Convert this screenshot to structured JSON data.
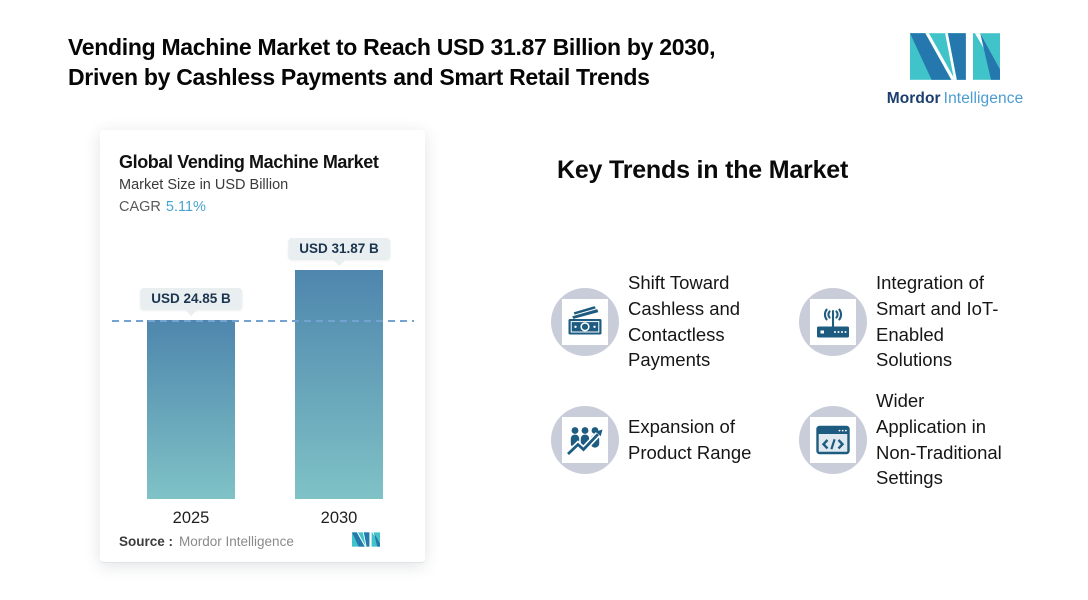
{
  "header": {
    "title": "Vending Machine Market to Reach USD 31.87 Billion by 2030,\nDriven by Cashless Payments and Smart Retail Trends"
  },
  "brand": {
    "name_bold": "Mordor",
    "name_light": "Intelligence",
    "teal": "#41c4c9",
    "blue": "#2478ad",
    "navy_text": "#1b3e6f",
    "light_text": "#4a9cd3"
  },
  "chart_card": {
    "title": "Global Vending Machine Market",
    "subtitle": "Market Size in USD Billion",
    "cagr_label": "CAGR",
    "cagr_value": "5.11%",
    "source_label": "Source :",
    "source_value": "Mordor Intelligence"
  },
  "chart_data": {
    "type": "bar",
    "title": "Global Vending Machine Market",
    "ylabel": "Market Size in USD Billion",
    "cagr_percent": "5.11%",
    "categories": [
      "2025",
      "2030"
    ],
    "values": [
      24.85,
      31.87
    ],
    "bar_labels": [
      "USD 24.85 B",
      "USD 31.87 B"
    ],
    "reference_line_value": 24.85,
    "ylim": [
      0,
      31.87
    ],
    "grid": "off",
    "legend": "none",
    "bar_color_top": "#4e86ad",
    "bar_color_bottom": "#7fc2c6",
    "reference_line_color": "#74a3d2",
    "accent_color": "#4aa3cf"
  },
  "trends": {
    "title": "Key Trends in the Market",
    "icon_circle_color": "#c8cdd9",
    "icon_color": "#1d5b80",
    "items": [
      {
        "icon": "cash-banknote-icon",
        "text": "Shift Toward\nCashless and\nContactless\nPayments"
      },
      {
        "icon": "iot-router-icon",
        "text": "Integration of\nSmart and IoT-\nEnabled\nSolutions"
      },
      {
        "icon": "people-growth-icon",
        "text": "Expansion of\nProduct Range"
      },
      {
        "icon": "code-window-icon",
        "text": "Wider\nApplication in\nNon-Traditional\nSettings"
      }
    ]
  }
}
